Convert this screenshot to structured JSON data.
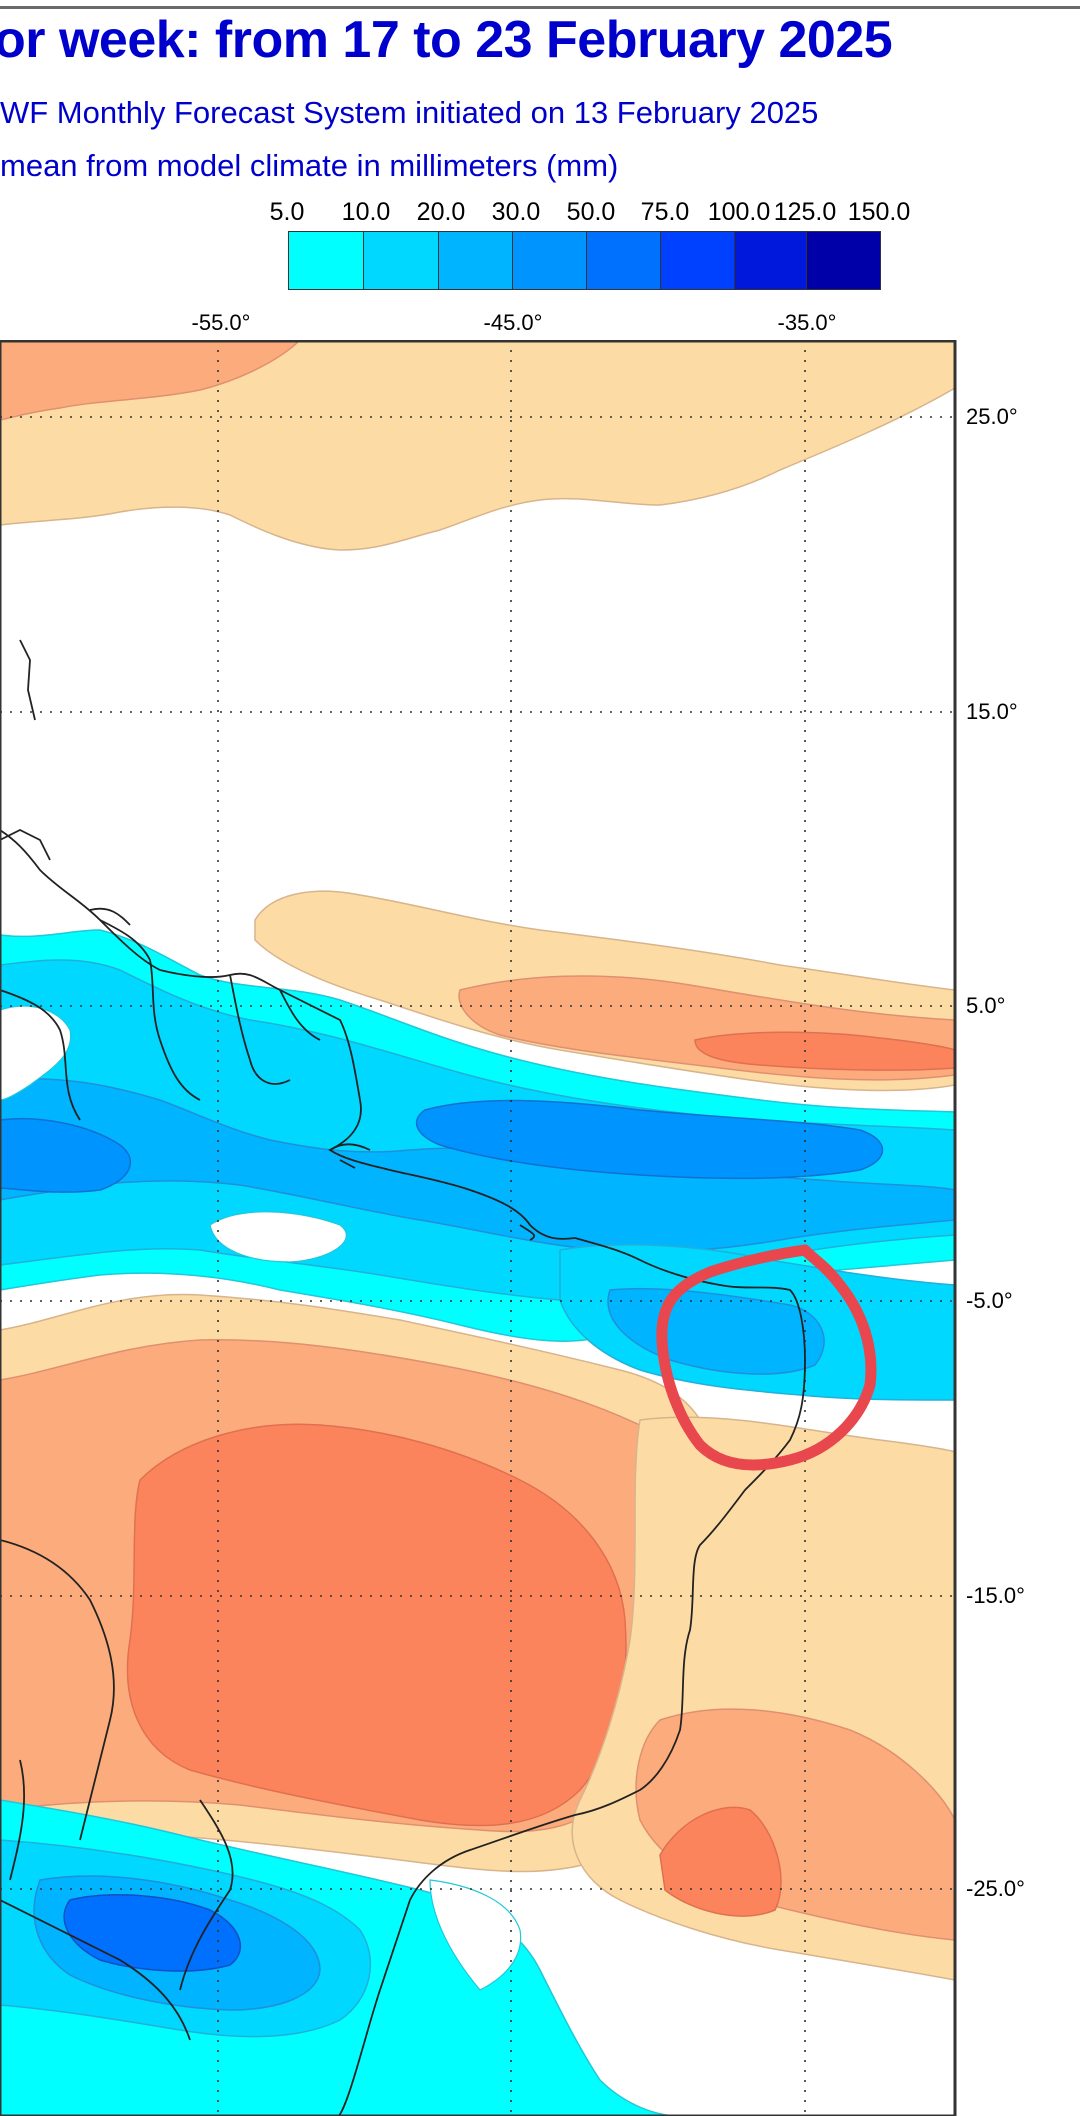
{
  "title": "or week: from 17 to 23 February 2025",
  "subtitle_1": "WF Monthly Forecast System initiated on 13 February 2025",
  "subtitle_2": " mean from model climate in millimeters (mm)",
  "legend": {
    "labels": [
      "5.0",
      "10.0",
      "20.0",
      "30.0",
      "50.0",
      "75.0",
      "100.0",
      "125.0",
      "150.0"
    ],
    "colors": [
      "#00ffff",
      "#00d8ff",
      "#00b4ff",
      "#0094ff",
      "#0070ff",
      "#0040ff",
      "#0018dc",
      "#0000a8"
    ]
  },
  "axes": {
    "longitude_labels": [
      "-55.0°",
      "-45.0°",
      "-35.0°"
    ],
    "latitude_labels": [
      "25.0°",
      "15.0°",
      "5.0°",
      "-5.0°",
      "-15.0°",
      "-25.0°"
    ]
  },
  "colors": {
    "title": "#0000cc",
    "anomaly_wet_light": "#00ffff",
    "anomaly_wet_mid": "#00d8ff",
    "anomaly_wet_strong": "#00b4ff",
    "anomaly_wet_heavy": "#0070ff",
    "anomaly_dry_light": "#fcdca4",
    "anomaly_dry_mid": "#fcac7c",
    "anomaly_dry_strong": "#fc845c",
    "highlight_circle": "#e8474e"
  }
}
